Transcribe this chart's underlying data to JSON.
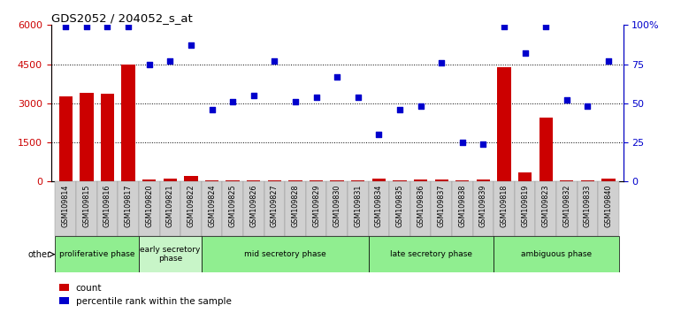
{
  "title": "GDS2052 / 204052_s_at",
  "samples": [
    "GSM109814",
    "GSM109815",
    "GSM109816",
    "GSM109817",
    "GSM109820",
    "GSM109821",
    "GSM109822",
    "GSM109824",
    "GSM109825",
    "GSM109826",
    "GSM109827",
    "GSM109828",
    "GSM109829",
    "GSM109830",
    "GSM109831",
    "GSM109834",
    "GSM109835",
    "GSM109836",
    "GSM109837",
    "GSM109838",
    "GSM109839",
    "GSM109818",
    "GSM109819",
    "GSM109823",
    "GSM109832",
    "GSM109833",
    "GSM109840"
  ],
  "counts": [
    3250,
    3400,
    3350,
    4500,
    80,
    100,
    200,
    60,
    40,
    40,
    40,
    40,
    30,
    30,
    40,
    100,
    60,
    80,
    80,
    60,
    80,
    4380,
    350,
    2450,
    60,
    60,
    100
  ],
  "percentile": [
    99,
    99,
    99,
    99,
    75,
    77,
    87,
    46,
    51,
    55,
    77,
    51,
    54,
    67,
    54,
    30,
    46,
    48,
    76,
    25,
    24,
    99,
    82,
    99,
    52,
    48,
    77
  ],
  "phases": [
    {
      "label": "proliferative phase",
      "start": 0,
      "end": 4,
      "color": "#90EE90"
    },
    {
      "label": "early secretory\nphase",
      "start": 4,
      "end": 7,
      "color": "#c8f5c8"
    },
    {
      "label": "mid secretory phase",
      "start": 7,
      "end": 15,
      "color": "#90EE90"
    },
    {
      "label": "late secretory phase",
      "start": 15,
      "end": 21,
      "color": "#90EE90"
    },
    {
      "label": "ambiguous phase",
      "start": 21,
      "end": 27,
      "color": "#90EE90"
    }
  ],
  "other_label": "other",
  "bar_color": "#cc0000",
  "dot_color": "#0000cc",
  "ylim_left": [
    0,
    6000
  ],
  "ylim_right": [
    0,
    100
  ],
  "yticks_left": [
    0,
    1500,
    3000,
    4500,
    6000
  ],
  "yticks_right": [
    0,
    25,
    50,
    75,
    100
  ],
  "grid_values": [
    1500,
    3000,
    4500
  ],
  "legend_count": "count",
  "legend_pct": "percentile rank within the sample"
}
